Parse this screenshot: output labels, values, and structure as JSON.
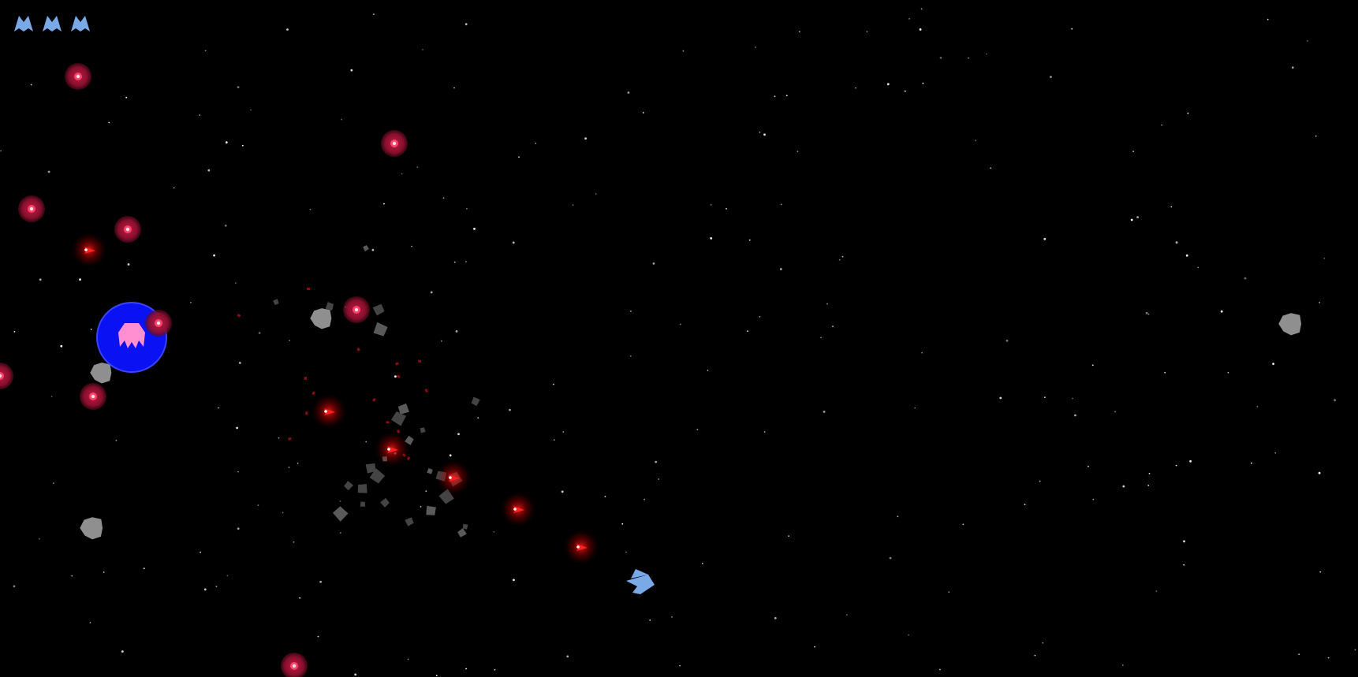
{
  "game": {
    "title": "",
    "background_color": "#000000"
  },
  "hud": {
    "lives": {
      "count": 3,
      "icon": "ship-icon",
      "color": "#7aa9e8"
    }
  },
  "palette": {
    "player_ship": "#7aa9e8",
    "mine": "#b0153a",
    "mine_core": "#ff4a6e",
    "shot": "#ff1f1f",
    "shot_glow": "#ff0000",
    "asteroid": "#8f8f8f",
    "debris": "#444444",
    "shield": "#0b12ff",
    "enemy": "#ff8fd0",
    "star": "#ffffff"
  }
}
